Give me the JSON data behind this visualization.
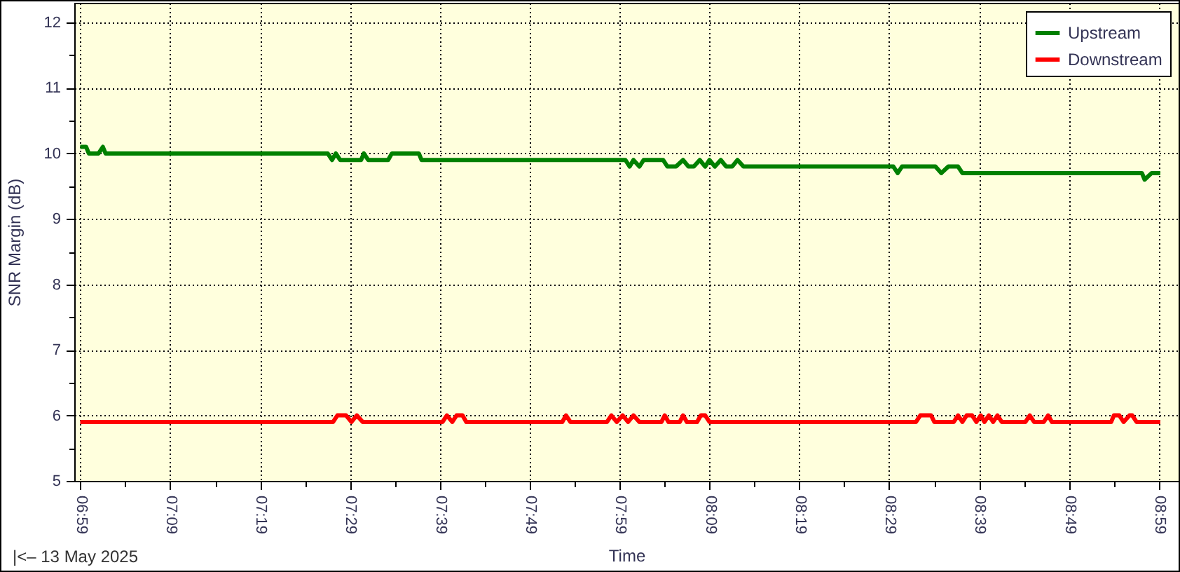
{
  "chart_data": {
    "type": "line",
    "xlabel": "Time",
    "ylabel": "SNR Margin (dB)",
    "annotations": [
      "|<– 13 May 2025"
    ],
    "xlim": [
      6.972,
      9.02
    ],
    "ylim": [
      5,
      12.3
    ],
    "xticks": [
      {
        "value": 6.9833,
        "label": "06:59"
      },
      {
        "value": 7.0667,
        "label": null
      },
      {
        "value": 7.15,
        "label": "07:09"
      },
      {
        "value": 7.2333,
        "label": null
      },
      {
        "value": 7.3167,
        "label": "07:19"
      },
      {
        "value": 7.4,
        "label": null
      },
      {
        "value": 7.4833,
        "label": "07:29"
      },
      {
        "value": 7.5667,
        "label": null
      },
      {
        "value": 7.65,
        "label": "07:39"
      },
      {
        "value": 7.7333,
        "label": null
      },
      {
        "value": 7.8167,
        "label": "07:49"
      },
      {
        "value": 7.9,
        "label": null
      },
      {
        "value": 7.9833,
        "label": "07:59"
      },
      {
        "value": 8.0667,
        "label": null
      },
      {
        "value": 8.15,
        "label": "08:09"
      },
      {
        "value": 8.2333,
        "label": null
      },
      {
        "value": 8.3167,
        "label": "08:19"
      },
      {
        "value": 8.4,
        "label": null
      },
      {
        "value": 8.4833,
        "label": "08:29"
      },
      {
        "value": 8.5667,
        "label": null
      },
      {
        "value": 8.65,
        "label": "08:39"
      },
      {
        "value": 8.7333,
        "label": null
      },
      {
        "value": 8.8167,
        "label": "08:49"
      },
      {
        "value": 8.9,
        "label": null
      },
      {
        "value": 8.9833,
        "label": "08:59"
      }
    ],
    "yticks": [
      5,
      {
        "value": 5.5,
        "label": null
      },
      6,
      {
        "value": 6.5,
        "label": null
      },
      7,
      {
        "value": 7.5,
        "label": null
      },
      8,
      {
        "value": 8.5,
        "label": null
      },
      9,
      {
        "value": 9.5,
        "label": null
      },
      10,
      {
        "value": 10.5,
        "label": null
      },
      11,
      {
        "value": 11.5,
        "label": null
      },
      12
    ],
    "grid": true,
    "legend": "top right",
    "marker": "none",
    "line_style": "solid",
    "series": [
      {
        "name": "Upstream",
        "color": "#008000",
        "x": [
          6.983,
          6.994,
          6.999,
          7.017,
          7.025,
          7.03,
          7.442,
          7.45,
          7.457,
          7.465,
          7.504,
          7.509,
          7.517,
          7.554,
          7.561,
          7.611,
          7.616,
          7.994,
          8.002,
          8.009,
          8.02,
          8.028,
          8.064,
          8.072,
          8.088,
          8.101,
          8.111,
          8.121,
          8.132,
          8.142,
          8.15,
          8.16,
          8.171,
          8.181,
          8.192,
          8.202,
          8.213,
          8.491,
          8.499,
          8.507,
          8.569,
          8.58,
          8.593,
          8.611,
          8.619,
          8.952,
          8.957,
          8.97,
          8.986
        ],
        "values": [
          10.1,
          10.1,
          10.0,
          10.0,
          10.1,
          10.0,
          10.0,
          9.9,
          10.0,
          9.9,
          9.9,
          10.0,
          9.9,
          9.9,
          10.0,
          10.0,
          9.9,
          9.9,
          9.8,
          9.9,
          9.8,
          9.9,
          9.9,
          9.8,
          9.8,
          9.9,
          9.8,
          9.8,
          9.9,
          9.8,
          9.9,
          9.8,
          9.9,
          9.8,
          9.8,
          9.9,
          9.8,
          9.8,
          9.7,
          9.8,
          9.8,
          9.7,
          9.8,
          9.8,
          9.7,
          9.7,
          9.6,
          9.7,
          9.7
        ]
      },
      {
        "name": "Downstream",
        "color": "#ff0000",
        "x": [
          6.983,
          7.452,
          7.46,
          7.476,
          7.486,
          7.496,
          7.507,
          7.655,
          7.663,
          7.673,
          7.681,
          7.692,
          7.699,
          7.877,
          7.884,
          7.892,
          7.96,
          7.968,
          7.978,
          7.989,
          7.999,
          8.009,
          8.02,
          8.061,
          8.067,
          8.074,
          8.095,
          8.101,
          8.108,
          8.127,
          8.134,
          8.142,
          8.15,
          8.533,
          8.541,
          8.561,
          8.567,
          8.603,
          8.611,
          8.619,
          8.627,
          8.637,
          8.645,
          8.653,
          8.66,
          8.668,
          8.676,
          8.684,
          8.692,
          8.736,
          8.744,
          8.752,
          8.77,
          8.778,
          8.785,
          8.895,
          8.9,
          8.91,
          8.918,
          8.929,
          8.934,
          8.942,
          8.986
        ],
        "values": [
          5.9,
          5.9,
          6.0,
          6.0,
          5.9,
          6.0,
          5.9,
          5.9,
          6.0,
          5.9,
          6.0,
          6.0,
          5.9,
          5.9,
          6.0,
          5.9,
          5.9,
          6.0,
          5.9,
          6.0,
          5.9,
          6.0,
          5.9,
          5.9,
          6.0,
          5.9,
          5.9,
          6.0,
          5.9,
          5.9,
          6.0,
          6.0,
          5.9,
          5.9,
          6.0,
          6.0,
          5.9,
          5.9,
          6.0,
          5.9,
          6.0,
          6.0,
          5.9,
          6.0,
          5.9,
          6.0,
          5.9,
          6.0,
          5.9,
          5.9,
          6.0,
          5.9,
          5.9,
          6.0,
          5.9,
          5.9,
          6.0,
          6.0,
          5.9,
          6.0,
          6.0,
          5.9,
          5.9
        ]
      }
    ]
  }
}
